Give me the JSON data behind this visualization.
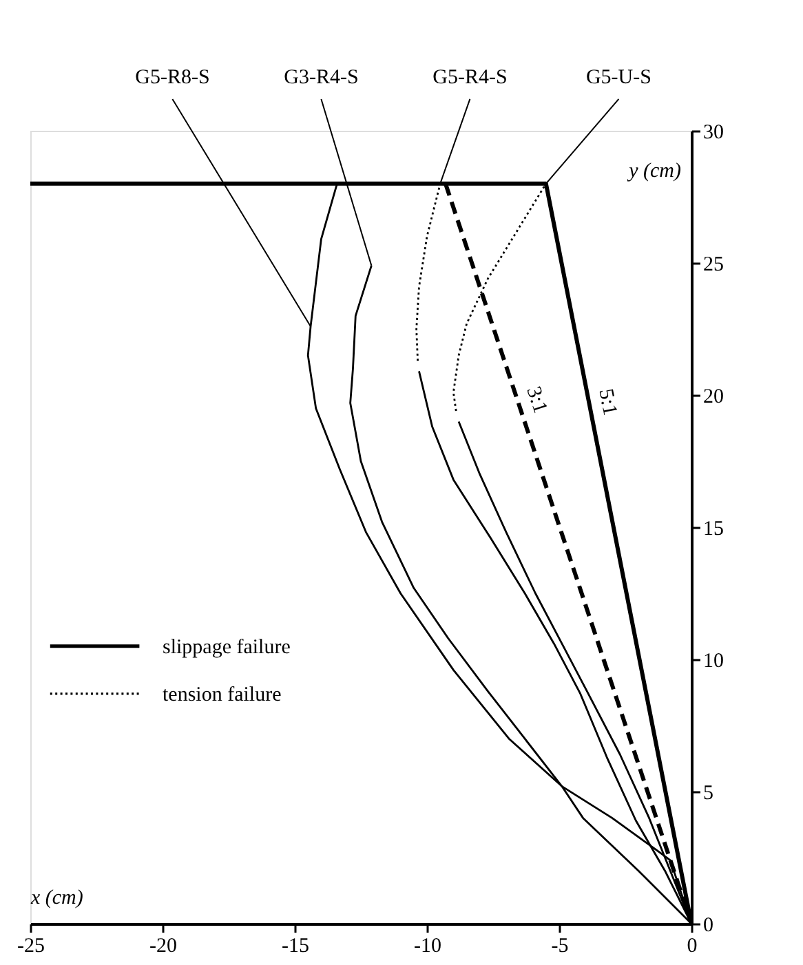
{
  "chart_data": {
    "type": "line",
    "xlabel": "x (cm)",
    "ylabel": "y (cm)",
    "xlim": [
      -25,
      0
    ],
    "xticks": [
      -25,
      -20,
      -15,
      -10,
      -5,
      0
    ],
    "ylim": [
      0,
      30
    ],
    "yticks": [
      0,
      5,
      10,
      15,
      20,
      25,
      30
    ],
    "grid": false,
    "legend": "left",
    "marker": "none",
    "series": [
      {
        "name": "5:1",
        "color": "#000000",
        "line_style": "solid",
        "x": [
          -25,
          -5.5,
          0
        ],
        "values": [
          28,
          28,
          0
        ]
      },
      {
        "name": "3:1",
        "color": "#000000",
        "line_style": "dashed",
        "x": [
          -9.3,
          0
        ],
        "values": [
          28,
          0
        ]
      },
      {
        "name": "slippage failure",
        "color": "#000000",
        "line_style": "solid",
        "x": [
          0,
          -0.8,
          -1.2,
          -3,
          -4.9,
          -6.9,
          -9,
          -11.0,
          -12.3,
          -13.3,
          -14.2,
          -14.5,
          -14.4,
          -14.0,
          -13.4
        ],
        "values": [
          0,
          2.4,
          2.7,
          4.0,
          5.2,
          7.0,
          9.6,
          12.5,
          14.8,
          17.2,
          19.5,
          21.5,
          22.6,
          25.9,
          28
        ]
      },
      {
        "color": "#000000",
        "line_style": "solid",
        "x": [
          0,
          -2,
          -4.1,
          -4.9,
          -6.3,
          -7.7,
          -9.2,
          -10.5,
          -11.7,
          -12.5,
          -12.9,
          -12.8,
          -12.7,
          -12.1
        ],
        "values": [
          0,
          2.0,
          4.0,
          5.2,
          7.0,
          8.8,
          10.8,
          12.7,
          15.2,
          17.5,
          19.7,
          21,
          23.0,
          24.9
        ]
      },
      {
        "color": "#000000",
        "line_style": "solid",
        "x": [
          0,
          -1,
          -2.1,
          -3.2,
          -4.2,
          -5.2,
          -6.3,
          -7.6,
          -9.0,
          -9.8,
          -10.3
        ],
        "values": [
          0,
          2,
          3.9,
          6.3,
          8.7,
          10.6,
          12.5,
          14.6,
          16.8,
          18.8,
          20.9
        ]
      },
      {
        "name": "tension failure",
        "color": "#000000",
        "line_style": "dotted",
        "x": [
          -10.35,
          -10.4,
          -10.3,
          -10.0,
          -9.5
        ],
        "values": [
          21.3,
          22.5,
          24.1,
          26,
          28
        ]
      },
      {
        "color": "#000000",
        "line_style": "solid",
        "x": [
          0,
          -0.8,
          -1.6,
          -2.7,
          -3.9,
          -4.9,
          -5.9,
          -7.0,
          -8.0,
          -8.8
        ],
        "values": [
          0,
          2,
          4.0,
          6.4,
          8.7,
          10.6,
          12.5,
          14.8,
          17.0,
          19.0
        ]
      },
      {
        "color": "#000000",
        "line_style": "dotted",
        "x": [
          -8.9,
          -9.0,
          -8.8,
          -8.5,
          -7.7,
          -6.6,
          -5.5
        ],
        "values": [
          19.4,
          20.1,
          21.5,
          22.7,
          24.4,
          26.2,
          28
        ]
      }
    ],
    "annotations": [
      {
        "text": "G5-R8-S",
        "x": -14.4,
        "y": 22.6
      },
      {
        "text": "G3-R4-S",
        "x": -12.1,
        "y": 24.9
      },
      {
        "text": "G5-R4-S",
        "x": -9.5,
        "y": 28
      },
      {
        "text": "G5-U-S",
        "x": -5.5,
        "y": 28
      }
    ]
  }
}
